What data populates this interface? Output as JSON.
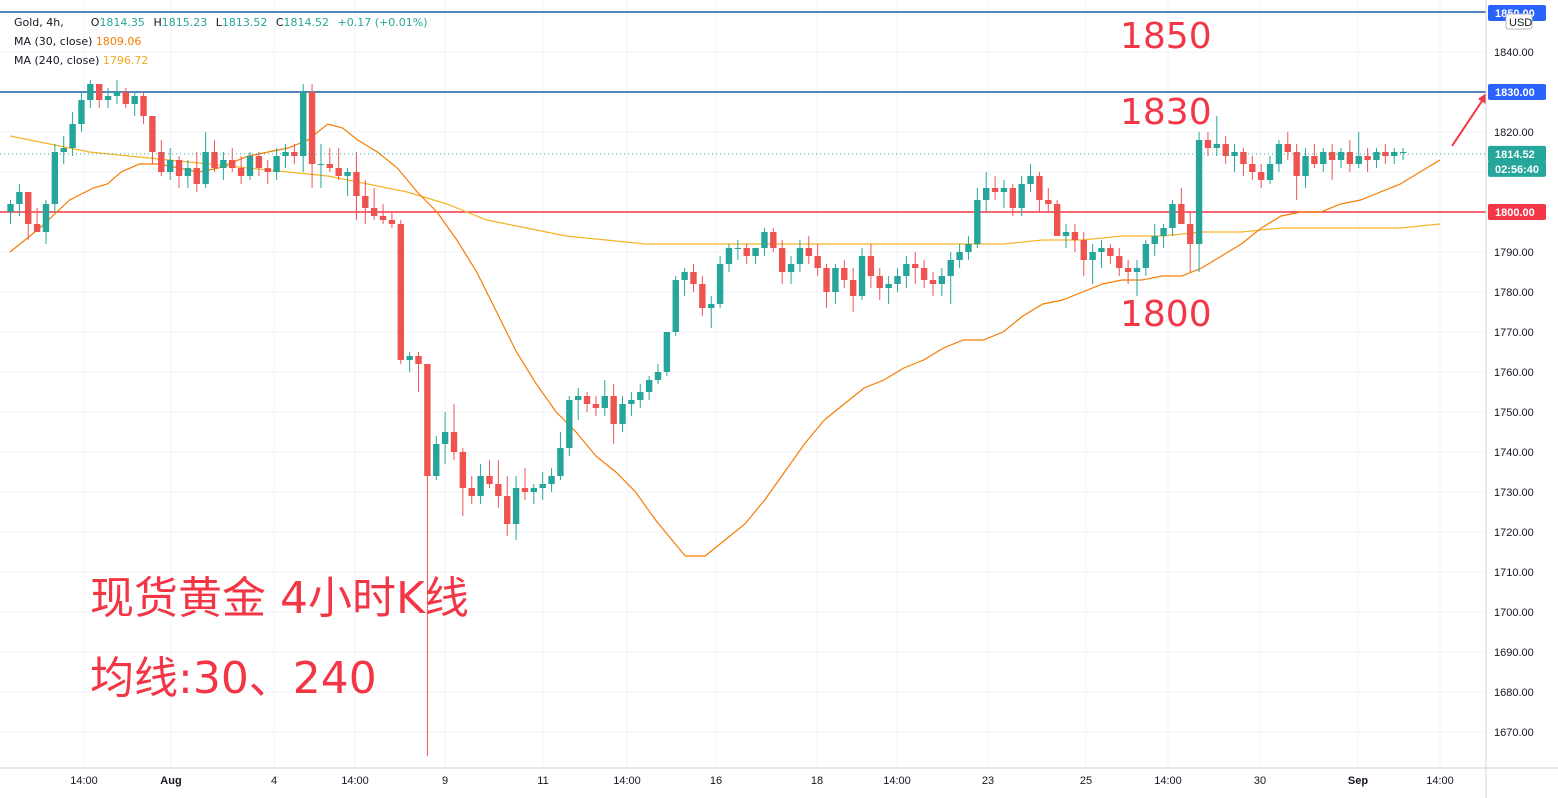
{
  "legend": {
    "symbol": "Gold, 4h,",
    "open_label": "O",
    "open": "1814.35",
    "high_label": "H",
    "high": "1815.23",
    "low_label": "L",
    "low": "1813.52",
    "close_label": "C",
    "close": "1814.52",
    "change": "+0.17 (+0.01%)",
    "ma30_label": "MA (30, close)",
    "ma30_value": "1809.06",
    "ma240_label": "MA (240, close)",
    "ma240_value": "1796.72"
  },
  "price_axis": {
    "currency": "USD",
    "ticks": [
      "1840.00",
      "1830.00",
      "1820.00",
      "1810.00",
      "1800.00",
      "1790.00",
      "1780.00",
      "1770.00",
      "1760.00",
      "1750.00",
      "1740.00",
      "1730.00",
      "1720.00",
      "1710.00",
      "1700.00",
      "1690.00",
      "1680.00",
      "1670.00"
    ],
    "badges": [
      {
        "text": "1850.00",
        "price": 1850,
        "color": "#2962ff"
      },
      {
        "text": "1830.00",
        "price": 1830,
        "color": "#2962ff"
      },
      {
        "text": "1814.52",
        "price": 1814.52,
        "color": "#26a69a"
      },
      {
        "text": "02:56:40",
        "price": 1814.52,
        "color": "#26a69a",
        "sub": true
      },
      {
        "text": "1800.00",
        "price": 1800,
        "color": "#f23645"
      }
    ]
  },
  "time_axis": {
    "labels": [
      "14:00",
      "Aug",
      "4",
      "14:00",
      "9",
      "11",
      "14:00",
      "16",
      "18",
      "14:00",
      "23",
      "25",
      "14:00",
      "30",
      "Sep",
      "14:00"
    ],
    "bold": [
      false,
      true,
      false,
      false,
      false,
      false,
      false,
      false,
      false,
      false,
      false,
      false,
      false,
      false,
      true,
      false
    ]
  },
  "annotations": {
    "level_1850": "1850",
    "level_1830": "1830",
    "level_1800": "1800",
    "title": "现货黄金 4小时K线",
    "subtitle": "均线:30、240"
  },
  "colors": {
    "up": "#26a69a",
    "down": "#ef5350",
    "ma30": "#f57c00",
    "ma240": "#f5b428",
    "hline_blue": "#1e5ea8",
    "hline_red": "#f23645",
    "annotation": "#f23645"
  },
  "chart_data": {
    "type": "candlestick",
    "title": "Gold, 4h,",
    "y_range": [
      1662,
      1852
    ],
    "horizontal_lines": [
      {
        "price": 1850,
        "color": "#1e5ea8"
      },
      {
        "price": 1830,
        "color": "#1e5ea8"
      },
      {
        "price": 1800,
        "color": "#f23645"
      }
    ],
    "candles": [
      [
        1800,
        1803,
        1797,
        1802
      ],
      [
        1802,
        1807,
        1799,
        1805
      ],
      [
        1805,
        1805,
        1793,
        1797
      ],
      [
        1797,
        1801,
        1795,
        1795
      ],
      [
        1795,
        1803,
        1792,
        1802
      ],
      [
        1802,
        1817,
        1800,
        1815
      ],
      [
        1815,
        1819,
        1812,
        1816
      ],
      [
        1816,
        1825,
        1814,
        1822
      ],
      [
        1822,
        1830,
        1820,
        1828
      ],
      [
        1828,
        1833,
        1826,
        1832
      ],
      [
        1832,
        1832,
        1826,
        1828
      ],
      [
        1828,
        1831,
        1826,
        1829
      ],
      [
        1829,
        1833,
        1827,
        1830
      ],
      [
        1830,
        1831,
        1826,
        1827
      ],
      [
        1827,
        1830,
        1824,
        1829
      ],
      [
        1829,
        1830,
        1822,
        1824
      ],
      [
        1824,
        1824,
        1812,
        1815
      ],
      [
        1815,
        1818,
        1809,
        1810
      ],
      [
        1810,
        1816,
        1808,
        1813
      ],
      [
        1813,
        1814,
        1806,
        1809
      ],
      [
        1809,
        1813,
        1806,
        1811
      ],
      [
        1811,
        1815,
        1805,
        1807
      ],
      [
        1807,
        1820,
        1806,
        1815
      ],
      [
        1815,
        1818,
        1810,
        1811
      ],
      [
        1811,
        1815,
        1808,
        1813
      ],
      [
        1813,
        1816,
        1810,
        1811
      ],
      [
        1811,
        1814,
        1807,
        1809
      ],
      [
        1809,
        1815,
        1808,
        1814
      ],
      [
        1814,
        1815,
        1809,
        1811
      ],
      [
        1811,
        1813,
        1807,
        1810
      ],
      [
        1810,
        1816,
        1808,
        1814
      ],
      [
        1814,
        1817,
        1811,
        1815
      ],
      [
        1815,
        1817,
        1812,
        1814
      ],
      [
        1814,
        1832,
        1810,
        1830
      ],
      [
        1830,
        1832,
        1806,
        1812
      ],
      [
        1812,
        1817,
        1806,
        1812
      ],
      [
        1812,
        1816,
        1810,
        1811
      ],
      [
        1811,
        1816,
        1808,
        1809
      ],
      [
        1809,
        1811,
        1804,
        1810
      ],
      [
        1810,
        1815,
        1798,
        1804
      ],
      [
        1804,
        1808,
        1797,
        1801
      ],
      [
        1801,
        1806,
        1798,
        1799
      ],
      [
        1799,
        1802,
        1797,
        1798
      ],
      [
        1798,
        1800,
        1796,
        1797
      ],
      [
        1797,
        1798,
        1762,
        1763
      ],
      [
        1763,
        1765,
        1760,
        1764
      ],
      [
        1764,
        1765,
        1755,
        1762
      ],
      [
        1762,
        1762,
        1664,
        1734
      ],
      [
        1734,
        1744,
        1733,
        1742
      ],
      [
        1742,
        1750,
        1737,
        1745
      ],
      [
        1745,
        1752,
        1738,
        1740
      ],
      [
        1740,
        1741,
        1724,
        1731
      ],
      [
        1731,
        1734,
        1727,
        1729
      ],
      [
        1729,
        1737,
        1727,
        1734
      ],
      [
        1734,
        1738,
        1731,
        1732
      ],
      [
        1732,
        1738,
        1726,
        1729
      ],
      [
        1729,
        1734,
        1719,
        1722
      ],
      [
        1722,
        1734,
        1718,
        1731
      ],
      [
        1731,
        1736,
        1728,
        1730
      ],
      [
        1730,
        1732,
        1727,
        1731
      ],
      [
        1731,
        1735,
        1728,
        1732
      ],
      [
        1732,
        1736,
        1730,
        1734
      ],
      [
        1734,
        1745,
        1733,
        1741
      ],
      [
        1741,
        1754,
        1739,
        1753
      ],
      [
        1753,
        1756,
        1748,
        1754
      ],
      [
        1754,
        1755,
        1750,
        1752
      ],
      [
        1752,
        1754,
        1749,
        1751
      ],
      [
        1751,
        1758,
        1749,
        1754
      ],
      [
        1754,
        1757,
        1742,
        1747
      ],
      [
        1747,
        1754,
        1745,
        1752
      ],
      [
        1752,
        1755,
        1749,
        1753
      ],
      [
        1753,
        1757,
        1751,
        1755
      ],
      [
        1755,
        1759,
        1753,
        1758
      ],
      [
        1758,
        1762,
        1757,
        1760
      ],
      [
        1760,
        1770,
        1759,
        1770
      ],
      [
        1770,
        1784,
        1769,
        1783
      ],
      [
        1783,
        1786,
        1779,
        1785
      ],
      [
        1785,
        1787,
        1780,
        1782
      ],
      [
        1782,
        1784,
        1774,
        1776
      ],
      [
        1776,
        1779,
        1771,
        1777
      ],
      [
        1777,
        1789,
        1776,
        1787
      ],
      [
        1787,
        1792,
        1785,
        1791
      ],
      [
        1791,
        1793,
        1788,
        1791
      ],
      [
        1791,
        1792,
        1787,
        1789
      ],
      [
        1789,
        1791,
        1787,
        1791
      ],
      [
        1791,
        1796,
        1789,
        1795
      ],
      [
        1795,
        1796,
        1790,
        1791
      ],
      [
        1791,
        1793,
        1782,
        1785
      ],
      [
        1785,
        1789,
        1782,
        1787
      ],
      [
        1787,
        1793,
        1785,
        1791
      ],
      [
        1791,
        1794,
        1787,
        1789
      ],
      [
        1789,
        1792,
        1784,
        1786
      ],
      [
        1786,
        1787,
        1776,
        1780
      ],
      [
        1780,
        1787,
        1777,
        1786
      ],
      [
        1786,
        1788,
        1781,
        1783
      ],
      [
        1783,
        1786,
        1775,
        1779
      ],
      [
        1779,
        1791,
        1778,
        1789
      ],
      [
        1789,
        1792,
        1781,
        1784
      ],
      [
        1784,
        1786,
        1778,
        1781
      ],
      [
        1781,
        1784,
        1777,
        1782
      ],
      [
        1782,
        1786,
        1780,
        1784
      ],
      [
        1784,
        1789,
        1781,
        1787
      ],
      [
        1787,
        1790,
        1782,
        1786
      ],
      [
        1786,
        1788,
        1781,
        1783
      ],
      [
        1783,
        1785,
        1779,
        1782
      ],
      [
        1782,
        1786,
        1779,
        1784
      ],
      [
        1784,
        1790,
        1777,
        1788
      ],
      [
        1788,
        1792,
        1786,
        1790
      ],
      [
        1790,
        1794,
        1788,
        1792
      ],
      [
        1792,
        1806,
        1791,
        1803
      ],
      [
        1803,
        1810,
        1800,
        1806
      ],
      [
        1806,
        1809,
        1803,
        1805
      ],
      [
        1805,
        1808,
        1801,
        1806
      ],
      [
        1806,
        1807,
        1799,
        1801
      ],
      [
        1801,
        1809,
        1799,
        1807
      ],
      [
        1807,
        1812,
        1805,
        1809
      ],
      [
        1809,
        1810,
        1800,
        1803
      ],
      [
        1803,
        1806,
        1800,
        1802
      ],
      [
        1802,
        1803,
        1794,
        1794
      ],
      [
        1794,
        1797,
        1791,
        1795
      ],
      [
        1795,
        1797,
        1790,
        1793
      ],
      [
        1793,
        1795,
        1784,
        1788
      ],
      [
        1788,
        1792,
        1782,
        1790
      ],
      [
        1790,
        1793,
        1786,
        1791
      ],
      [
        1791,
        1792,
        1787,
        1789
      ],
      [
        1789,
        1791,
        1784,
        1786
      ],
      [
        1786,
        1788,
        1782,
        1785
      ],
      [
        1785,
        1788,
        1779,
        1786
      ],
      [
        1786,
        1793,
        1784,
        1792
      ],
      [
        1792,
        1797,
        1789,
        1794
      ],
      [
        1794,
        1797,
        1791,
        1796
      ],
      [
        1796,
        1803,
        1794,
        1802
      ],
      [
        1802,
        1806,
        1798,
        1797
      ],
      [
        1797,
        1800,
        1785,
        1792
      ],
      [
        1792,
        1820,
        1785,
        1818
      ],
      [
        1818,
        1820,
        1814,
        1816
      ],
      [
        1816,
        1824,
        1814,
        1817
      ],
      [
        1817,
        1819,
        1812,
        1814
      ],
      [
        1814,
        1817,
        1810,
        1815
      ],
      [
        1815,
        1816,
        1809,
        1812
      ],
      [
        1812,
        1814,
        1808,
        1810
      ],
      [
        1810,
        1812,
        1806,
        1808
      ],
      [
        1808,
        1814,
        1807,
        1812
      ],
      [
        1812,
        1818,
        1810,
        1817
      ],
      [
        1817,
        1820,
        1813,
        1815
      ],
      [
        1815,
        1817,
        1803,
        1809
      ],
      [
        1809,
        1816,
        1806,
        1814
      ],
      [
        1814,
        1817,
        1811,
        1812
      ],
      [
        1812,
        1816,
        1810,
        1815
      ],
      [
        1815,
        1817,
        1808,
        1813
      ],
      [
        1813,
        1816,
        1811,
        1815
      ],
      [
        1815,
        1818,
        1810,
        1812
      ],
      [
        1812,
        1820,
        1811,
        1814
      ],
      [
        1814,
        1816,
        1810,
        1813
      ],
      [
        1813,
        1816,
        1811,
        1815
      ],
      [
        1815,
        1817,
        1812,
        1814
      ],
      [
        1814,
        1816,
        1812,
        1815
      ],
      [
        1815,
        1816,
        1813,
        1815
      ]
    ],
    "ma30": [
      [
        0,
        1790
      ],
      [
        30,
        1796
      ],
      [
        60,
        1803
      ],
      [
        84,
        1806
      ],
      [
        98,
        1807
      ],
      [
        112,
        1810
      ],
      [
        130,
        1812
      ],
      [
        150,
        1812
      ],
      [
        170,
        1811
      ],
      [
        190,
        1810
      ],
      [
        210,
        1811
      ],
      [
        240,
        1814
      ],
      [
        260,
        1815
      ],
      [
        280,
        1816
      ],
      [
        300,
        1818
      ],
      [
        320,
        1822
      ],
      [
        335,
        1821
      ],
      [
        350,
        1818
      ],
      [
        370,
        1815
      ],
      [
        390,
        1811
      ],
      [
        410,
        1805
      ],
      [
        430,
        1800
      ],
      [
        450,
        1793
      ],
      [
        470,
        1785
      ],
      [
        490,
        1775
      ],
      [
        510,
        1765
      ],
      [
        530,
        1757
      ],
      [
        550,
        1750
      ],
      [
        570,
        1745
      ],
      [
        590,
        1739
      ],
      [
        610,
        1735
      ],
      [
        630,
        1730
      ],
      [
        650,
        1723
      ],
      [
        670,
        1717
      ],
      [
        680,
        1714
      ],
      [
        700,
        1714
      ],
      [
        720,
        1718
      ],
      [
        740,
        1722
      ],
      [
        760,
        1728
      ],
      [
        780,
        1735
      ],
      [
        800,
        1742
      ],
      [
        820,
        1748
      ],
      [
        840,
        1752
      ],
      [
        860,
        1756
      ],
      [
        880,
        1758
      ],
      [
        900,
        1761
      ],
      [
        920,
        1763
      ],
      [
        940,
        1766
      ],
      [
        960,
        1768
      ],
      [
        980,
        1768
      ],
      [
        1000,
        1770
      ],
      [
        1020,
        1774
      ],
      [
        1040,
        1777
      ],
      [
        1060,
        1778
      ],
      [
        1080,
        1780
      ],
      [
        1100,
        1782
      ],
      [
        1120,
        1783
      ],
      [
        1140,
        1783
      ],
      [
        1160,
        1784
      ],
      [
        1180,
        1784
      ],
      [
        1200,
        1786
      ],
      [
        1220,
        1789
      ],
      [
        1240,
        1792
      ],
      [
        1260,
        1796
      ],
      [
        1280,
        1799
      ],
      [
        1300,
        1800
      ],
      [
        1320,
        1800
      ],
      [
        1340,
        1802
      ],
      [
        1360,
        1803
      ],
      [
        1380,
        1805
      ],
      [
        1400,
        1807
      ],
      [
        1420,
        1810
      ],
      [
        1440,
        1813
      ]
    ],
    "ma240": [
      [
        0,
        1819
      ],
      [
        40,
        1817
      ],
      [
        80,
        1815
      ],
      [
        120,
        1814
      ],
      [
        160,
        1813
      ],
      [
        200,
        1812
      ],
      [
        240,
        1811
      ],
      [
        280,
        1810
      ],
      [
        320,
        1809
      ],
      [
        360,
        1807
      ],
      [
        400,
        1805
      ],
      [
        440,
        1802
      ],
      [
        480,
        1798
      ],
      [
        520,
        1796
      ],
      [
        560,
        1794
      ],
      [
        600,
        1793
      ],
      [
        640,
        1792
      ],
      [
        680,
        1792
      ],
      [
        720,
        1792
      ],
      [
        760,
        1792
      ],
      [
        800,
        1792
      ],
      [
        840,
        1792
      ],
      [
        880,
        1792
      ],
      [
        920,
        1792
      ],
      [
        960,
        1792
      ],
      [
        1000,
        1792
      ],
      [
        1040,
        1793
      ],
      [
        1080,
        1793
      ],
      [
        1120,
        1794
      ],
      [
        1160,
        1794
      ],
      [
        1200,
        1795
      ],
      [
        1240,
        1795
      ],
      [
        1280,
        1796
      ],
      [
        1320,
        1796
      ],
      [
        1360,
        1796
      ],
      [
        1400,
        1796
      ],
      [
        1440,
        1797
      ]
    ]
  }
}
